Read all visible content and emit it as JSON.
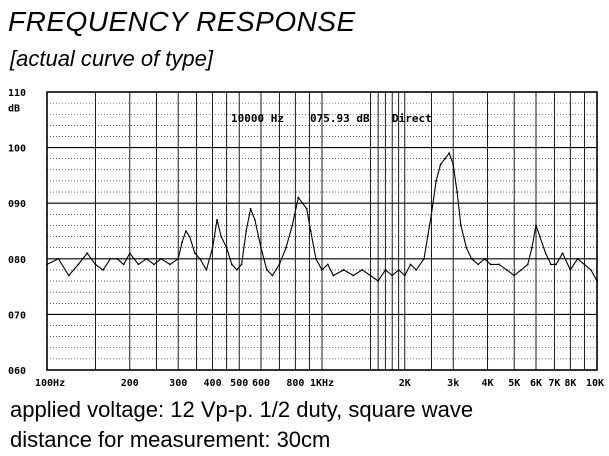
{
  "heading": "FREQUENCY RESPONSE",
  "subheading": "[actual curve of type]",
  "notes": [
    "applied voltage: 12 Vp-p. 1/2 duty, square wave",
    "distance for measurement: 30cm"
  ],
  "chart_data": {
    "type": "line",
    "title": "",
    "ylabel": "dB",
    "xlabel": "",
    "x_scale": "log",
    "xlim": [
      100,
      10000
    ],
    "ylim": [
      60,
      110
    ],
    "y_ticks": [
      "110",
      "100",
      "090",
      "080",
      "070",
      "060"
    ],
    "y_tick_values": [
      110,
      100,
      90,
      80,
      70,
      60
    ],
    "x_tick_labels": [
      "100Hz",
      "200",
      "300",
      "400",
      "500",
      "600",
      "800",
      "1KHz",
      "2K",
      "3k",
      "4K",
      "5K",
      "6K",
      "7K",
      "8K",
      "10K"
    ],
    "x_tick_values": [
      100,
      200,
      300,
      400,
      500,
      600,
      800,
      1000,
      2000,
      3000,
      4000,
      5000,
      6000,
      7000,
      8000,
      10000
    ],
    "readout": {
      "freq": "10000 Hz",
      "level": "075.93 dB",
      "mode": "Direct"
    },
    "grid": true,
    "series": [
      {
        "x": [
          100,
          110,
          120,
          130,
          140,
          150,
          160,
          170,
          180,
          190,
          200,
          215,
          230,
          245,
          260,
          280,
          300,
          310,
          320,
          330,
          345,
          360,
          380,
          400,
          415,
          430,
          450,
          470,
          490,
          510,
          530,
          550,
          570,
          600,
          630,
          660,
          700,
          740,
          780,
          820,
          850,
          880,
          910,
          950,
          1000,
          1050,
          1100,
          1200,
          1300,
          1400,
          1500,
          1600,
          1700,
          1800,
          1900,
          2000,
          2100,
          2200,
          2350,
          2500,
          2600,
          2700,
          2800,
          2900,
          3000,
          3100,
          3200,
          3350,
          3500,
          3700,
          3900,
          4100,
          4400,
          4700,
          5000,
          5300,
          5600,
          5800,
          6000,
          6200,
          6500,
          6800,
          7100,
          7500,
          8000,
          8500,
          9000,
          9500,
          10000
        ],
        "y": [
          79,
          80,
          77,
          79,
          81,
          79,
          78,
          80,
          80,
          79,
          81,
          79,
          80,
          79,
          80,
          79,
          80,
          83,
          85,
          84,
          81,
          80,
          78,
          82,
          87,
          84,
          82,
          79,
          78,
          79,
          85,
          89,
          87,
          82,
          78,
          77,
          79,
          82,
          86,
          91,
          90,
          89,
          85,
          80,
          78,
          79,
          77,
          78,
          77,
          78,
          77,
          76,
          78,
          77,
          78,
          77,
          79,
          78,
          80,
          88,
          94,
          97,
          98,
          99,
          97,
          92,
          86,
          82,
          80,
          79,
          80,
          79,
          79,
          78,
          77,
          78,
          79,
          82,
          86,
          84,
          81,
          79,
          79,
          81,
          78,
          80,
          79,
          78,
          76
        ]
      }
    ]
  }
}
